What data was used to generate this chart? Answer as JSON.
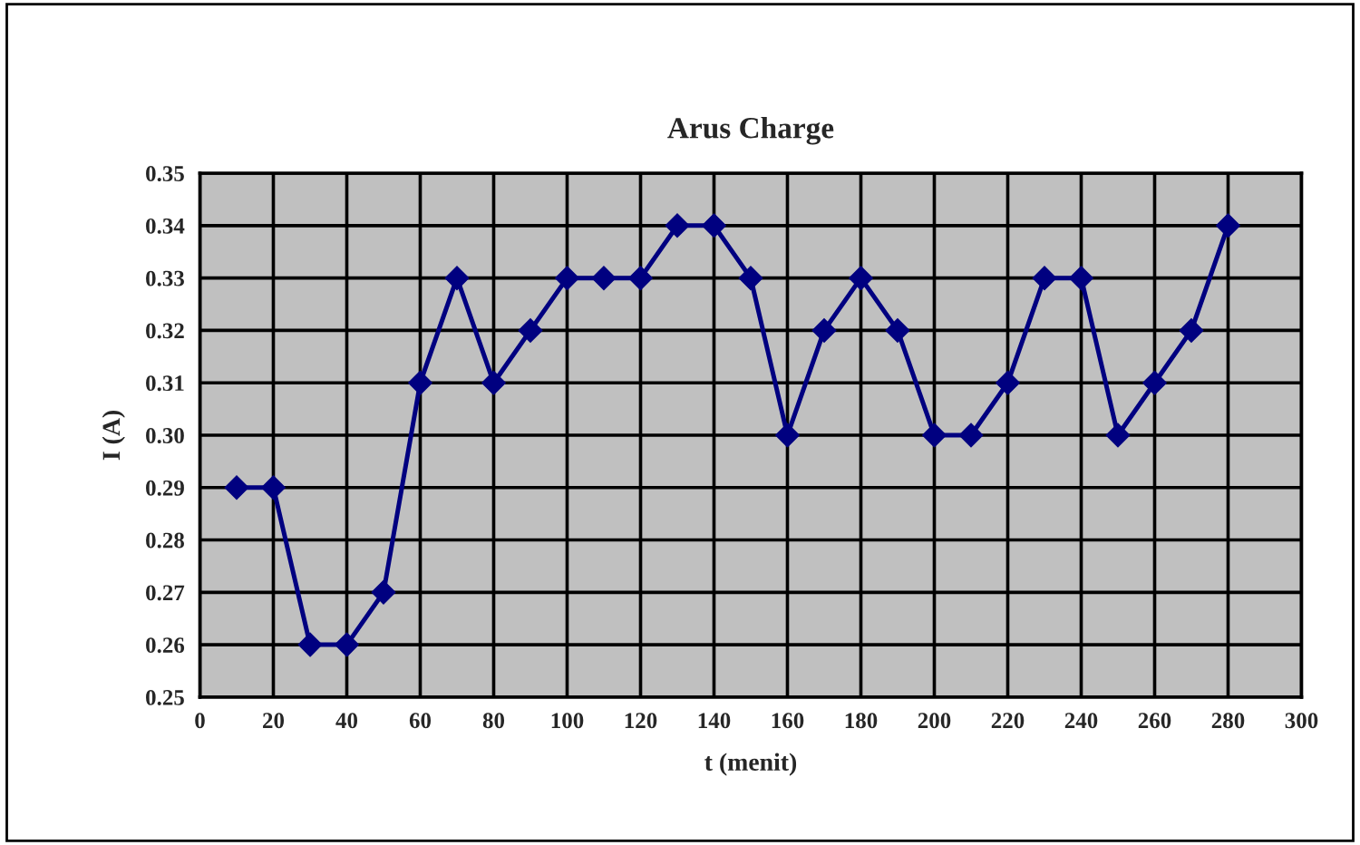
{
  "chart_data": {
    "type": "line",
    "title": "Arus Charge",
    "xlabel": "t (menit)",
    "ylabel": "I (A)",
    "x": [
      10,
      20,
      30,
      40,
      50,
      60,
      70,
      80,
      90,
      100,
      110,
      120,
      130,
      140,
      150,
      160,
      170,
      180,
      190,
      200,
      210,
      220,
      230,
      240,
      250,
      260,
      270,
      280
    ],
    "series": [
      {
        "color": "#000080",
        "values": [
          0.29,
          0.29,
          0.26,
          0.26,
          0.27,
          0.31,
          0.33,
          0.31,
          0.32,
          0.33,
          0.33,
          0.33,
          0.34,
          0.34,
          0.33,
          0.3,
          0.32,
          0.33,
          0.32,
          0.3,
          0.3,
          0.31,
          0.33,
          0.33,
          0.3,
          0.31,
          0.32,
          0.34
        ]
      }
    ],
    "xlim": [
      0,
      300
    ],
    "xticks": [
      0,
      20,
      40,
      60,
      80,
      100,
      120,
      140,
      160,
      180,
      200,
      220,
      240,
      260,
      280,
      300
    ],
    "ylim": [
      0.25,
      0.35
    ],
    "yticks": [
      {
        "value": 0.25,
        "label": "0.25"
      },
      {
        "value": 0.26,
        "label": "0.26"
      },
      {
        "value": 0.27,
        "label": "0.27"
      },
      {
        "value": 0.28,
        "label": "0.28"
      },
      {
        "value": 0.29,
        "label": "0.29"
      },
      {
        "value": 0.3,
        "label": "0.30"
      },
      {
        "value": 0.31,
        "label": "0.31"
      },
      {
        "value": 0.32,
        "label": "0.32"
      },
      {
        "value": 0.33,
        "label": "0.33"
      },
      {
        "value": 0.34,
        "label": "0.34"
      },
      {
        "value": 0.35,
        "label": "0.35"
      }
    ],
    "grid": true,
    "marker": "diamond",
    "line_style": "solid",
    "legend": false
  }
}
